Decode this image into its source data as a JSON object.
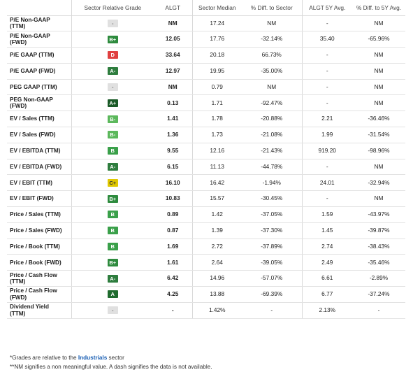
{
  "header": {
    "metric": "",
    "grade": "Sector Relative Grade",
    "company": "ALGT",
    "median": "Sector Median",
    "diff": "% Diff. to Sector",
    "avg5y": "ALGT 5Y Avg.",
    "diff5y": "% Diff. to 5Y Avg."
  },
  "grade_colors": {
    "-": "#e0e0e0",
    "A+": "#1a5a27",
    "A": "#1f6b2e",
    "A-": "#2e7d3e",
    "B+": "#2e8b3e",
    "B": "#3aa04a",
    "B-": "#5cb85c",
    "C+": "#e0c800",
    "D": "#e04040"
  },
  "rows": [
    {
      "metric": "P/E Non-GAAP\n(TTM)",
      "grade": "-",
      "algt": "NM",
      "median": "17.24",
      "diff": "NM",
      "avg5y": "-",
      "diff5y": "NM"
    },
    {
      "metric": "P/E Non-GAAP\n(FWD)",
      "grade": "B+",
      "algt": "12.05",
      "median": "17.76",
      "diff": "-32.14%",
      "avg5y": "35.40",
      "diff5y": "-65.96%"
    },
    {
      "metric": "P/E GAAP (TTM)",
      "grade": "D",
      "algt": "33.64",
      "median": "20.18",
      "diff": "66.73%",
      "avg5y": "-",
      "diff5y": "NM"
    },
    {
      "metric": "P/E GAAP (FWD)",
      "grade": "A-",
      "algt": "12.97",
      "median": "19.95",
      "diff": "-35.00%",
      "avg5y": "-",
      "diff5y": "NM"
    },
    {
      "metric": "PEG GAAP (TTM)",
      "grade": "-",
      "algt": "NM",
      "median": "0.79",
      "diff": "NM",
      "avg5y": "-",
      "diff5y": "NM"
    },
    {
      "metric": "PEG Non-GAAP\n(FWD)",
      "grade": "A+",
      "algt": "0.13",
      "median": "1.71",
      "diff": "-92.47%",
      "avg5y": "-",
      "diff5y": "NM"
    },
    {
      "metric": "EV / Sales (TTM)",
      "grade": "B-",
      "algt": "1.41",
      "median": "1.78",
      "diff": "-20.88%",
      "avg5y": "2.21",
      "diff5y": "-36.46%"
    },
    {
      "metric": "EV / Sales (FWD)",
      "grade": "B-",
      "algt": "1.36",
      "median": "1.73",
      "diff": "-21.08%",
      "avg5y": "1.99",
      "diff5y": "-31.54%"
    },
    {
      "metric": "EV / EBITDA (TTM)",
      "grade": "B",
      "algt": "9.55",
      "median": "12.16",
      "diff": "-21.43%",
      "avg5y": "919.20",
      "diff5y": "-98.96%"
    },
    {
      "metric": "EV / EBITDA (FWD)",
      "grade": "A-",
      "algt": "6.15",
      "median": "11.13",
      "diff": "-44.78%",
      "avg5y": "-",
      "diff5y": "NM"
    },
    {
      "metric": "EV / EBIT (TTM)",
      "grade": "C+",
      "algt": "16.10",
      "median": "16.42",
      "diff": "-1.94%",
      "avg5y": "24.01",
      "diff5y": "-32.94%"
    },
    {
      "metric": "EV / EBIT (FWD)",
      "grade": "B+",
      "algt": "10.83",
      "median": "15.57",
      "diff": "-30.45%",
      "avg5y": "-",
      "diff5y": "NM"
    },
    {
      "metric": "Price / Sales (TTM)",
      "grade": "B",
      "algt": "0.89",
      "median": "1.42",
      "diff": "-37.05%",
      "avg5y": "1.59",
      "diff5y": "-43.97%"
    },
    {
      "metric": "Price / Sales (FWD)",
      "grade": "B",
      "algt": "0.87",
      "median": "1.39",
      "diff": "-37.30%",
      "avg5y": "1.45",
      "diff5y": "-39.87%"
    },
    {
      "metric": "Price / Book (TTM)",
      "grade": "B",
      "algt": "1.69",
      "median": "2.72",
      "diff": "-37.89%",
      "avg5y": "2.74",
      "diff5y": "-38.43%"
    },
    {
      "metric": "Price / Book (FWD)",
      "grade": "B+",
      "algt": "1.61",
      "median": "2.64",
      "diff": "-39.05%",
      "avg5y": "2.49",
      "diff5y": "-35.46%"
    },
    {
      "metric": "Price / Cash Flow\n(TTM)",
      "grade": "A-",
      "algt": "6.42",
      "median": "14.96",
      "diff": "-57.07%",
      "avg5y": "6.61",
      "diff5y": "-2.89%"
    },
    {
      "metric": "Price / Cash Flow\n(FWD)",
      "grade": "A",
      "algt": "4.25",
      "median": "13.88",
      "diff": "-69.39%",
      "avg5y": "6.77",
      "diff5y": "-37.24%"
    },
    {
      "metric": "Dividend Yield\n(TTM)",
      "grade": "-",
      "algt": "-",
      "median": "1.42%",
      "diff": "-",
      "avg5y": "2.13%",
      "diff5y": "-"
    }
  ],
  "footnotes": {
    "line1_prefix": "*Grades are relative to the ",
    "line1_link": "Industrials",
    "line1_suffix": " sector",
    "line2": "**NM signifies a non meaningful value. A dash signifies the data is not available."
  }
}
